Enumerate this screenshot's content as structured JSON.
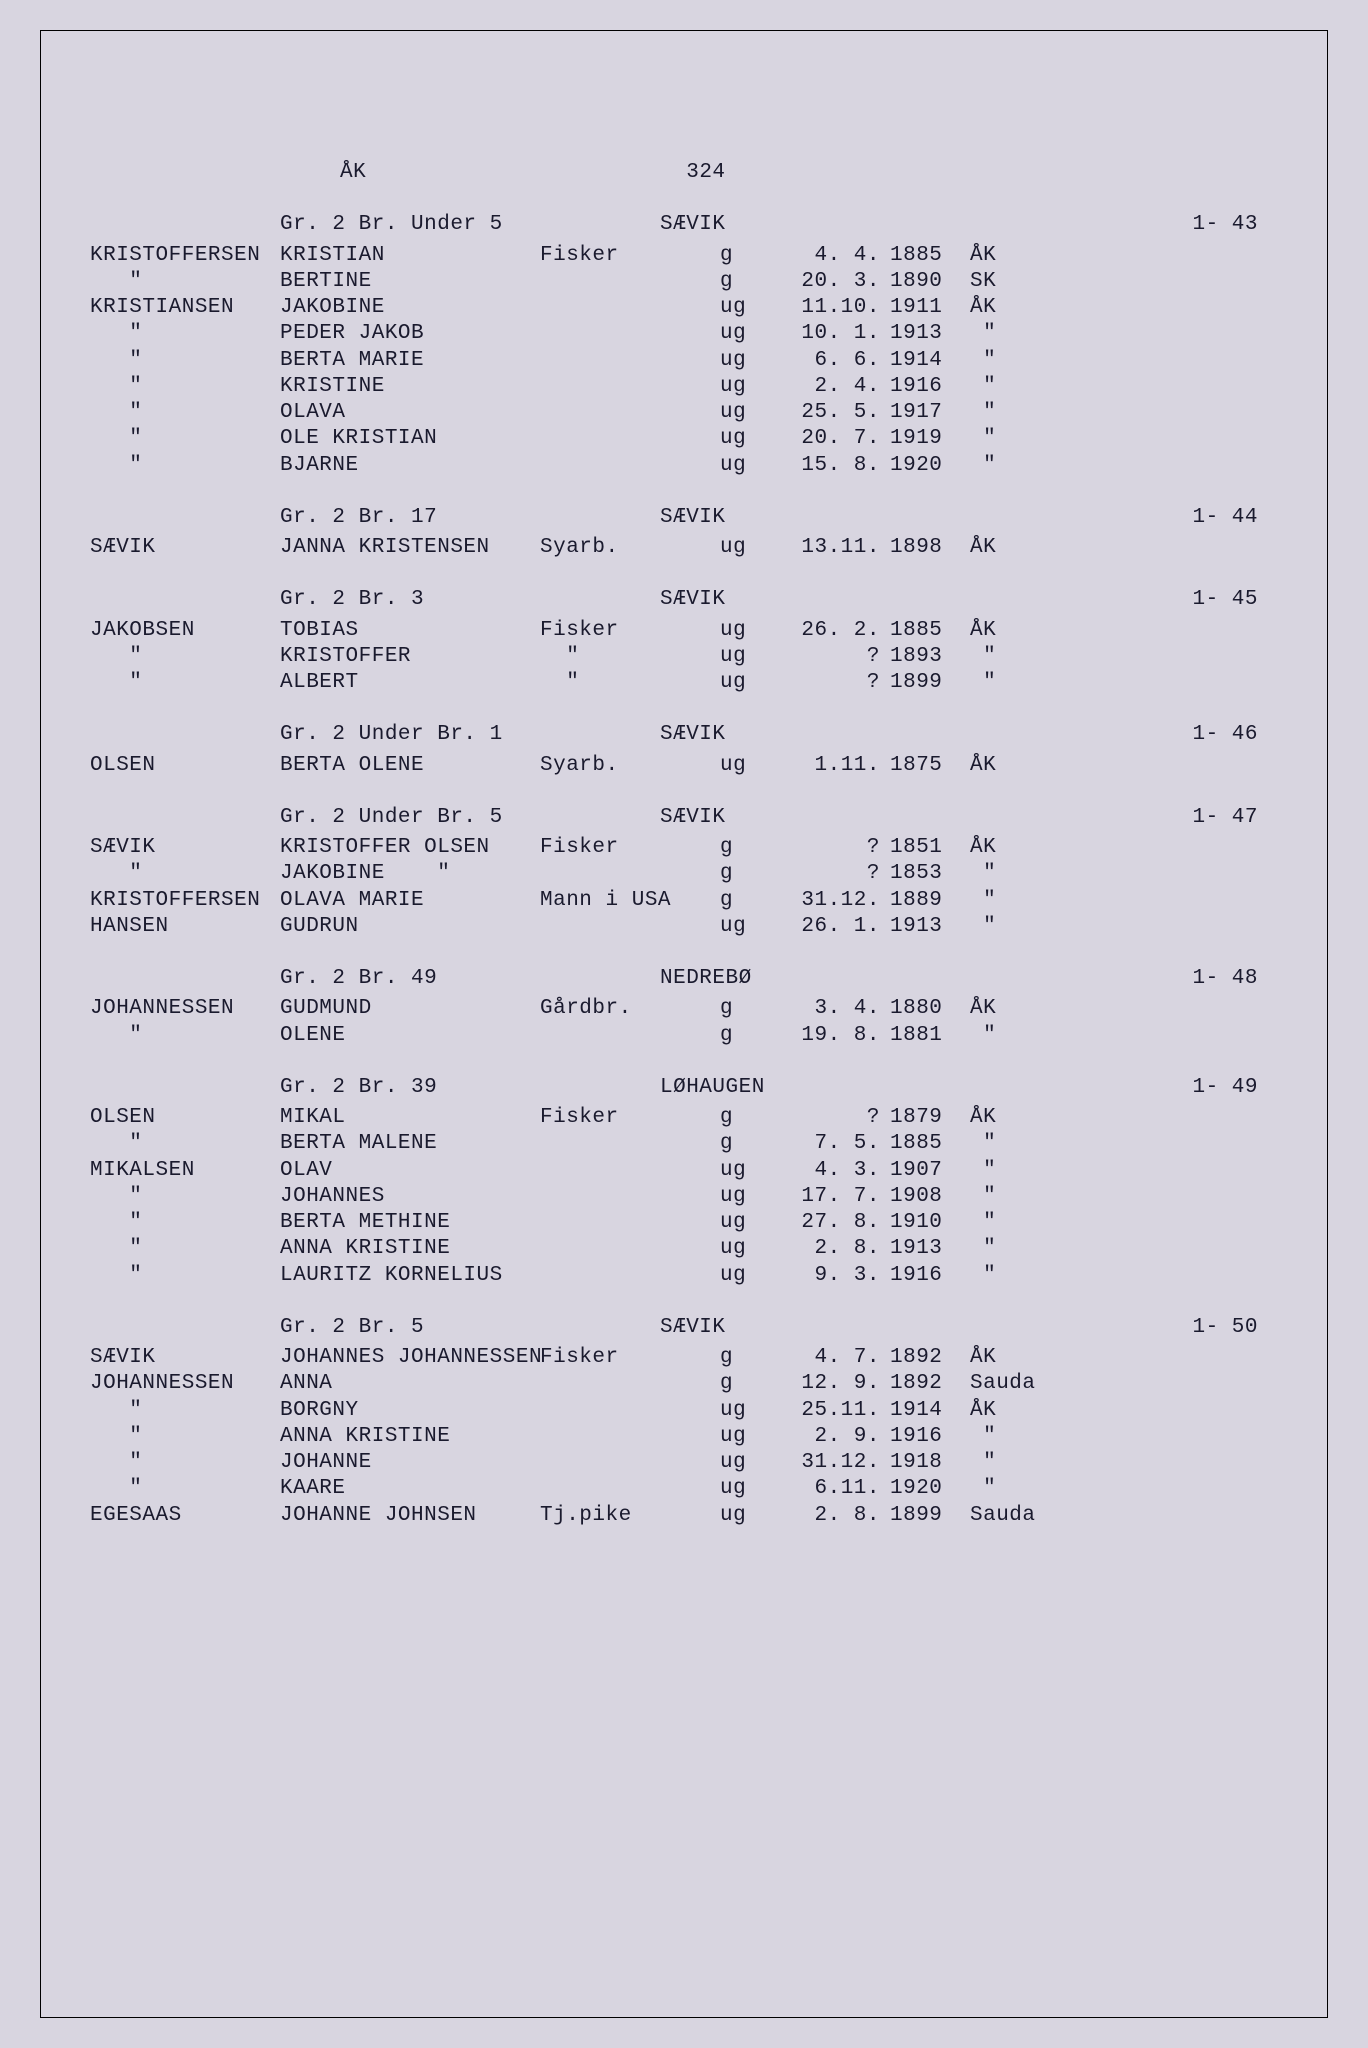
{
  "header": {
    "region": "ÅK",
    "page": "324"
  },
  "sections": [
    {
      "head": {
        "gr": "Gr. 2 Br. Under 5",
        "place": "SÆVIK",
        "ref": "1- 43"
      },
      "rows": [
        {
          "surname": "KRISTOFFERSEN",
          "given": "KRISTIAN",
          "occ": "Fisker",
          "stat": "g",
          "date": "4. 4.",
          "year": "1885",
          "loc": "ÅK"
        },
        {
          "surname": "   \"",
          "given": "BERTINE",
          "occ": "",
          "stat": "g",
          "date": "20. 3.",
          "year": "1890",
          "loc": "SK"
        },
        {
          "surname": "KRISTIANSEN",
          "given": "JAKOBINE",
          "occ": "",
          "stat": "ug",
          "date": "11.10.",
          "year": "1911",
          "loc": "ÅK"
        },
        {
          "surname": "   \"",
          "given": "PEDER JAKOB",
          "occ": "",
          "stat": "ug",
          "date": "10. 1.",
          "year": "1913",
          "loc": " \""
        },
        {
          "surname": "   \"",
          "given": "BERTA MARIE",
          "occ": "",
          "stat": "ug",
          "date": "6. 6.",
          "year": "1914",
          "loc": " \""
        },
        {
          "surname": "   \"",
          "given": "KRISTINE",
          "occ": "",
          "stat": "ug",
          "date": "2. 4.",
          "year": "1916",
          "loc": " \""
        },
        {
          "surname": "   \"",
          "given": "OLAVA",
          "occ": "",
          "stat": "ug",
          "date": "25. 5.",
          "year": "1917",
          "loc": " \""
        },
        {
          "surname": "   \"",
          "given": "OLE KRISTIAN",
          "occ": "",
          "stat": "ug",
          "date": "20. 7.",
          "year": "1919",
          "loc": " \""
        },
        {
          "surname": "   \"",
          "given": "BJARNE",
          "occ": "",
          "stat": "ug",
          "date": "15. 8.",
          "year": "1920",
          "loc": " \""
        }
      ]
    },
    {
      "head": {
        "gr": "Gr. 2 Br. 17",
        "place": "SÆVIK",
        "ref": "1- 44"
      },
      "rows": [
        {
          "surname": "SÆVIK",
          "given": "JANNA KRISTENSEN",
          "occ": "Syarb.",
          "stat": "ug",
          "date": "13.11.",
          "year": "1898",
          "loc": "ÅK"
        }
      ]
    },
    {
      "head": {
        "gr": "Gr. 2 Br. 3",
        "place": "SÆVIK",
        "ref": "1- 45"
      },
      "rows": [
        {
          "surname": "JAKOBSEN",
          "given": "TOBIAS",
          "occ": "Fisker",
          "stat": "ug",
          "date": "26. 2.",
          "year": "1885",
          "loc": "ÅK"
        },
        {
          "surname": "   \"",
          "given": "KRISTOFFER",
          "occ": "  \"",
          "stat": "ug",
          "date": "?",
          "year": "1893",
          "loc": " \""
        },
        {
          "surname": "   \"",
          "given": "ALBERT",
          "occ": "  \"",
          "stat": "ug",
          "date": "?",
          "year": "1899",
          "loc": " \""
        }
      ]
    },
    {
      "head": {
        "gr": "Gr. 2 Under Br. 1",
        "place": "SÆVIK",
        "ref": "1- 46"
      },
      "rows": [
        {
          "surname": "OLSEN",
          "given": "BERTA OLENE",
          "occ": "Syarb.",
          "stat": "ug",
          "date": "1.11.",
          "year": "1875",
          "loc": "ÅK"
        }
      ]
    },
    {
      "head": {
        "gr": "Gr. 2 Under Br. 5",
        "place": "SÆVIK",
        "ref": "1- 47"
      },
      "rows": [
        {
          "surname": "SÆVIK",
          "given": "KRISTOFFER OLSEN",
          "occ": "Fisker",
          "stat": "g",
          "date": "?",
          "year": "1851",
          "loc": "ÅK"
        },
        {
          "surname": "   \"",
          "given": "JAKOBINE    \"",
          "occ": "",
          "stat": "g",
          "date": "?",
          "year": "1853",
          "loc": " \""
        },
        {
          "surname": "KRISTOFFERSEN",
          "given": "OLAVA MARIE",
          "occ": "Mann i USA",
          "stat": "g",
          "date": "31.12.",
          "year": "1889",
          "loc": " \""
        },
        {
          "surname": "HANSEN",
          "given": "GUDRUN",
          "occ": "",
          "stat": "ug",
          "date": "26. 1.",
          "year": "1913",
          "loc": " \""
        }
      ]
    },
    {
      "head": {
        "gr": "Gr. 2 Br. 49",
        "place": "NEDREBØ",
        "ref": "1- 48"
      },
      "rows": [
        {
          "surname": "JOHANNESSEN",
          "given": "GUDMUND",
          "occ": "Gårdbr.",
          "stat": "g",
          "date": "3. 4.",
          "year": "1880",
          "loc": "ÅK"
        },
        {
          "surname": "   \"",
          "given": "OLENE",
          "occ": "",
          "stat": "g",
          "date": "19. 8.",
          "year": "1881",
          "loc": " \""
        }
      ]
    },
    {
      "head": {
        "gr": "Gr. 2 Br. 39",
        "place": "LØHAUGEN",
        "ref": "1- 49"
      },
      "rows": [
        {
          "surname": "OLSEN",
          "given": "MIKAL",
          "occ": "Fisker",
          "stat": "g",
          "date": "?",
          "year": "1879",
          "loc": "ÅK"
        },
        {
          "surname": "   \"",
          "given": "BERTA MALENE",
          "occ": "",
          "stat": "g",
          "date": "7. 5.",
          "year": "1885",
          "loc": " \""
        },
        {
          "surname": "MIKALSEN",
          "given": "OLAV",
          "occ": "",
          "stat": "ug",
          "date": "4. 3.",
          "year": "1907",
          "loc": " \""
        },
        {
          "surname": "   \"",
          "given": "JOHANNES",
          "occ": "",
          "stat": "ug",
          "date": "17. 7.",
          "year": "1908",
          "loc": " \""
        },
        {
          "surname": "   \"",
          "given": "BERTA METHINE",
          "occ": "",
          "stat": "ug",
          "date": "27. 8.",
          "year": "1910",
          "loc": " \""
        },
        {
          "surname": "   \"",
          "given": "ANNA KRISTINE",
          "occ": "",
          "stat": "ug",
          "date": "2. 8.",
          "year": "1913",
          "loc": " \""
        },
        {
          "surname": "   \"",
          "given": "LAURITZ KORNELIUS",
          "occ": "",
          "stat": "ug",
          "date": "9. 3.",
          "year": "1916",
          "loc": " \""
        }
      ]
    },
    {
      "head": {
        "gr": "Gr. 2 Br. 5",
        "place": "SÆVIK",
        "ref": "1- 50"
      },
      "rows": [
        {
          "surname": "SÆVIK",
          "given": "JOHANNES JOHANNESSEN",
          "occ": "Fisker",
          "stat": "g",
          "date": "4. 7.",
          "year": "1892",
          "loc": "ÅK"
        },
        {
          "surname": "JOHANNESSEN",
          "given": "ANNA",
          "occ": "",
          "stat": "g",
          "date": "12. 9.",
          "year": "1892",
          "loc": "Sauda"
        },
        {
          "surname": "   \"",
          "given": "BORGNY",
          "occ": "",
          "stat": "ug",
          "date": "25.11.",
          "year": "1914",
          "loc": "ÅK"
        },
        {
          "surname": "   \"",
          "given": "ANNA KRISTINE",
          "occ": "",
          "stat": "ug",
          "date": "2. 9.",
          "year": "1916",
          "loc": " \""
        },
        {
          "surname": "   \"",
          "given": "JOHANNE",
          "occ": "",
          "stat": "ug",
          "date": "31.12.",
          "year": "1918",
          "loc": " \""
        },
        {
          "surname": "   \"",
          "given": "KAARE",
          "occ": "",
          "stat": "ug",
          "date": "6.11.",
          "year": "1920",
          "loc": " \""
        },
        {
          "surname": "EGESAAS",
          "given": "JOHANNE JOHNSEN",
          "occ": "Tj.pike",
          "stat": "ug",
          "date": "2. 8.",
          "year": "1899",
          "loc": "Sauda"
        }
      ]
    }
  ]
}
